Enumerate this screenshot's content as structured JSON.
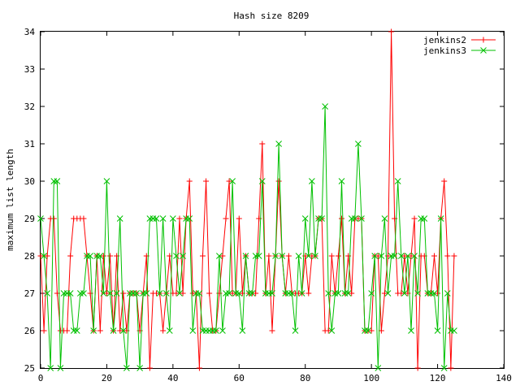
{
  "chart_data": {
    "type": "line",
    "title": "Hash size 8209",
    "xlabel": "",
    "ylabel": "maximum list length",
    "xlim": [
      0,
      140
    ],
    "ylim": [
      25,
      34
    ],
    "xticks": [
      0,
      20,
      40,
      60,
      80,
      100,
      120,
      140
    ],
    "yticks": [
      25,
      26,
      27,
      28,
      29,
      30,
      31,
      32,
      33,
      34
    ],
    "grid": false,
    "legend_position": "top-right",
    "series": [
      {
        "name": "jenkins2",
        "color": "#ff0000",
        "marker": "plus",
        "x": [
          0,
          1,
          2,
          3,
          4,
          5,
          6,
          7,
          8,
          9,
          10,
          11,
          12,
          13,
          14,
          15,
          16,
          17,
          18,
          19,
          20,
          21,
          22,
          23,
          24,
          25,
          26,
          27,
          28,
          29,
          30,
          31,
          32,
          33,
          34,
          35,
          36,
          37,
          38,
          39,
          40,
          41,
          42,
          43,
          44,
          45,
          46,
          47,
          48,
          49,
          50,
          51,
          52,
          53,
          54,
          55,
          56,
          57,
          58,
          59,
          60,
          61,
          62,
          63,
          64,
          65,
          66,
          67,
          68,
          69,
          70,
          71,
          72,
          73,
          74,
          75,
          76,
          77,
          78,
          79,
          80,
          81,
          82,
          83,
          84,
          85,
          86,
          87,
          88,
          89,
          90,
          91,
          92,
          93,
          94,
          95,
          96,
          97,
          98,
          99,
          100,
          101,
          102,
          103,
          104,
          105,
          106,
          107,
          108,
          109,
          110,
          111,
          112,
          113,
          114,
          115,
          116,
          117,
          118,
          119,
          120,
          121,
          122,
          123,
          124,
          125
        ],
        "y": [
          28,
          26,
          28,
          29,
          29,
          27,
          26,
          26,
          26,
          28,
          29,
          29,
          29,
          29,
          28,
          27,
          26,
          28,
          26,
          28,
          27,
          28,
          26,
          28,
          26,
          27,
          26,
          27,
          27,
          27,
          26,
          27,
          28,
          25,
          27,
          27,
          27,
          26,
          27,
          28,
          27,
          27,
          29,
          27,
          29,
          30,
          27,
          27,
          25,
          28,
          30,
          27,
          26,
          26,
          27,
          28,
          29,
          30,
          27,
          27,
          29,
          27,
          28,
          27,
          27,
          27,
          29,
          31,
          27,
          28,
          26,
          28,
          30,
          28,
          27,
          28,
          27,
          27,
          27,
          27,
          28,
          27,
          28,
          28,
          29,
          29,
          26,
          26,
          28,
          27,
          28,
          29,
          27,
          28,
          27,
          29,
          29,
          29,
          26,
          26,
          26,
          28,
          28,
          26,
          27,
          28,
          34,
          29,
          27,
          27,
          28,
          27,
          28,
          29,
          25,
          28,
          28,
          27,
          27,
          28,
          27,
          29,
          30,
          28,
          25,
          28
        ]
      },
      {
        "name": "jenkins3",
        "color": "#00c000",
        "marker": "cross",
        "x": [
          0,
          1,
          2,
          3,
          4,
          5,
          6,
          7,
          8,
          9,
          10,
          11,
          12,
          13,
          14,
          15,
          16,
          17,
          18,
          19,
          20,
          21,
          22,
          23,
          24,
          25,
          26,
          27,
          28,
          29,
          30,
          31,
          32,
          33,
          34,
          35,
          36,
          37,
          38,
          39,
          40,
          41,
          42,
          43,
          44,
          45,
          46,
          47,
          48,
          49,
          50,
          51,
          52,
          53,
          54,
          55,
          56,
          57,
          58,
          59,
          60,
          61,
          62,
          63,
          64,
          65,
          66,
          67,
          68,
          69,
          70,
          71,
          72,
          73,
          74,
          75,
          76,
          77,
          78,
          79,
          80,
          81,
          82,
          83,
          84,
          85,
          86,
          87,
          88,
          89,
          90,
          91,
          92,
          93,
          94,
          95,
          96,
          97,
          98,
          99,
          100,
          101,
          102,
          103,
          104,
          105,
          106,
          107,
          108,
          109,
          110,
          111,
          112,
          113,
          114,
          115,
          116,
          117,
          118,
          119,
          120,
          121,
          122,
          123,
          124,
          125
        ],
        "y": [
          29,
          28,
          27,
          25,
          30,
          30,
          25,
          27,
          27,
          27,
          26,
          26,
          27,
          27,
          28,
          28,
          26,
          28,
          28,
          27,
          30,
          27,
          26,
          27,
          29,
          26,
          25,
          27,
          27,
          27,
          25,
          27,
          27,
          29,
          29,
          29,
          27,
          29,
          27,
          26,
          29,
          28,
          27,
          28,
          29,
          29,
          26,
          27,
          27,
          26,
          26,
          26,
          26,
          26,
          28,
          26,
          27,
          27,
          30,
          27,
          27,
          26,
          28,
          27,
          27,
          28,
          28,
          30,
          27,
          27,
          27,
          28,
          31,
          28,
          27,
          27,
          27,
          26,
          28,
          27,
          29,
          28,
          30,
          28,
          29,
          29,
          32,
          27,
          26,
          27,
          27,
          30,
          27,
          27,
          29,
          29,
          31,
          29,
          26,
          26,
          27,
          28,
          25,
          28,
          29,
          27,
          28,
          28,
          30,
          28,
          27,
          28,
          26,
          28,
          27,
          29,
          29,
          27,
          27,
          27,
          26,
          29,
          25,
          27,
          26,
          26
        ]
      }
    ]
  }
}
